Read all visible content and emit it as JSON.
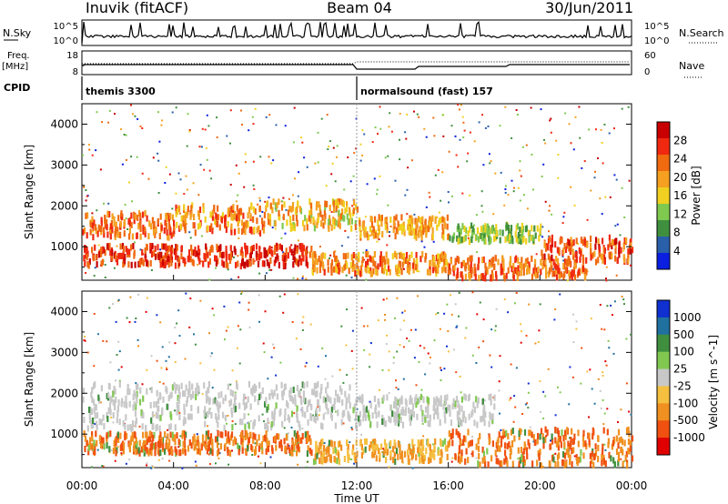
{
  "header": {
    "station": "Inuvik (fitACF)",
    "beam": "Beam 04",
    "date": "30/Jun/2011"
  },
  "strip_labels": {
    "nsky": "N.Sky",
    "nsky_ticks": [
      "10^5",
      "10^0"
    ],
    "nsearch": "N.Search",
    "nsearch_ticks": [
      "10^5",
      "10^0"
    ],
    "freq": "Freq.",
    "freq_unit": "[MHz]",
    "freq_ticks": [
      "18",
      "8"
    ],
    "nave": "Nave",
    "nave_ticks": [
      "60",
      "0"
    ],
    "cpid": "CPID"
  },
  "cpid_segments": [
    {
      "label": "themis 3300",
      "start_hour": 0
    },
    {
      "label": "normalsound (fast) 157",
      "start_hour": 12
    }
  ],
  "time_axis": {
    "label": "Time UT",
    "ticks": [
      "00:00",
      "04:00",
      "08:00",
      "12:00",
      "16:00",
      "20:00",
      "00:00"
    ],
    "range_hours": [
      0,
      24
    ]
  },
  "colors": {
    "power": [
      "#0a1fe0",
      "#2a5faa",
      "#3f8f3f",
      "#7fc94f",
      "#f0d020",
      "#f5a020",
      "#f06a10",
      "#f02810",
      "#c80000"
    ],
    "velocity": [
      "#1030d0",
      "#2070a0",
      "#3f8f3f",
      "#80c850",
      "#c8c8c8",
      "#f5c040",
      "#f09020",
      "#f05010",
      "#e00000"
    ]
  },
  "chart_data": [
    {
      "type": "heatmap",
      "name": "power",
      "ylabel": "Slant Range [km]",
      "xlabel": "",
      "ylim": [
        180,
        4500
      ],
      "yticks": [
        1000,
        2000,
        3000,
        4000
      ],
      "xlim": [
        0,
        24
      ],
      "colorbar": {
        "label": "Power [dB]",
        "range": [
          0,
          32
        ],
        "ticks": [
          4,
          8,
          12,
          16,
          20,
          24,
          28
        ]
      },
      "bands": [
        {
          "hours": [
            0,
            4
          ],
          "range_km": [
            1300,
            1900
          ],
          "value": 24
        },
        {
          "hours": [
            4,
            8
          ],
          "range_km": [
            1400,
            2100
          ],
          "value": 22
        },
        {
          "hours": [
            8,
            12
          ],
          "range_km": [
            1500,
            2200
          ],
          "value": 18
        },
        {
          "hours": [
            12,
            16
          ],
          "range_km": [
            1300,
            1800
          ],
          "value": 20
        },
        {
          "hours": [
            16,
            20
          ],
          "range_km": [
            1200,
            1600
          ],
          "value": 12
        },
        {
          "hours": [
            0,
            10
          ],
          "range_km": [
            600,
            1100
          ],
          "value": 28
        },
        {
          "hours": [
            10,
            16
          ],
          "range_km": [
            400,
            900
          ],
          "value": 22
        },
        {
          "hours": [
            16,
            22
          ],
          "range_km": [
            300,
            800
          ],
          "value": 24
        },
        {
          "hours": [
            20,
            24
          ],
          "range_km": [
            700,
            1300
          ],
          "value": 26
        }
      ]
    },
    {
      "type": "heatmap",
      "name": "velocity",
      "ylabel": "Slant Range [km]",
      "xlabel": "Time UT",
      "ylim": [
        180,
        4500
      ],
      "yticks": [
        1000,
        2000,
        3000,
        4000
      ],
      "xlim": [
        0,
        24
      ],
      "colorbar": {
        "label": "Velocity [m s^-1]",
        "ticks": [
          "1000",
          "500",
          "100",
          "25",
          "-25",
          "-100",
          "-500",
          "-1000"
        ]
      },
      "bands": [
        {
          "hours": [
            0,
            12
          ],
          "range_km": [
            1200,
            2300
          ],
          "value": 0
        },
        {
          "hours": [
            12,
            18
          ],
          "range_km": [
            1300,
            2000
          ],
          "value": 0
        },
        {
          "hours": [
            0,
            10
          ],
          "range_km": [
            600,
            1100
          ],
          "value": -300
        },
        {
          "hours": [
            10,
            16
          ],
          "range_km": [
            400,
            900
          ],
          "value": -100
        },
        {
          "hours": [
            16,
            24
          ],
          "range_km": [
            300,
            1200
          ],
          "value": -400
        }
      ]
    }
  ]
}
